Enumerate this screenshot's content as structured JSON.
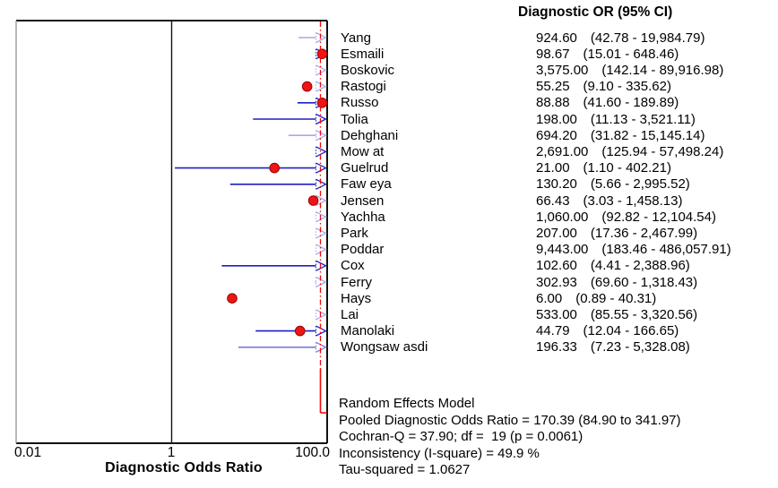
{
  "header": {
    "col_title": "Diagnostic OR (95% CI)"
  },
  "axis": {
    "xlabel": "Diagnostic Odds Ratio",
    "tick_min": "0.01",
    "tick_mid": "1",
    "tick_max": "100.0"
  },
  "summary": {
    "lines": [
      "Random Effects Model",
      "Pooled Diagnostic Odds Ratio = 170.39 (84.90 to 341.97)",
      "Cochran-Q = 37.90; df =  19 (p = 0.0061)",
      "Inconsistency (I-square) = 49.9 %",
      "Tau-squared = 1.0627"
    ]
  },
  "colors": {
    "ci_strong": "#1f1fc1",
    "ci_light": "#a9a9ec",
    "ci_medium": "#7a7ade",
    "dot_fill": "#ed1515",
    "dot_edge": "#a00000",
    "pooled_red": "#f10808",
    "axis_black": "#111111",
    "axis_gray": "#999999"
  },
  "chart_data": {
    "type": "forest",
    "title": "Diagnostic OR (95% CI)",
    "xlabel": "Diagnostic Odds Ratio",
    "x_scale": "log",
    "x_ticks": [
      0.01,
      1,
      100
    ],
    "x_tick_labels": [
      "0.01",
      "1",
      "100.0"
    ],
    "xlim": [
      0.01,
      100
    ],
    "pooled": {
      "label": "Random Effects Model",
      "or": 170.39,
      "lo": 84.9,
      "hi": 341.97
    },
    "heterogeneity": {
      "cochran_q": 37.9,
      "df": 19,
      "p": 0.0061,
      "i_square_pct": 49.9,
      "tau_squared": 1.0627
    },
    "studies": [
      {
        "name": "Yang",
        "or": 924.6,
        "lo": 42.78,
        "hi": 19984.79,
        "or_text": "924.60",
        "ci_text": "(42.78 - 19,984.79)",
        "line": true,
        "tone": "light"
      },
      {
        "name": "Esmaili",
        "or": 98.67,
        "lo": 15.01,
        "hi": 648.46,
        "or_text": "98.67",
        "ci_text": "(15.01 - 648.46)",
        "line": false,
        "tone": "strong"
      },
      {
        "name": "Boskovic",
        "or": 3575.0,
        "lo": 142.14,
        "hi": 89916.98,
        "or_text": "3,575.00",
        "ci_text": "(142.14 - 89,916.98)",
        "line": true,
        "tone": "light"
      },
      {
        "name": "Rastogi",
        "or": 55.25,
        "lo": 9.1,
        "hi": 335.62,
        "or_text": "55.25",
        "ci_text": "(9.10 - 335.62)",
        "line": false,
        "tone": "light"
      },
      {
        "name": "Russo",
        "or": 88.88,
        "lo": 41.6,
        "hi": 189.89,
        "or_text": "88.88",
        "ci_text": "(41.60 - 189.89)",
        "line": true,
        "tone": "strong"
      },
      {
        "name": "Tolia",
        "or": 198.0,
        "lo": 11.13,
        "hi": 3521.11,
        "or_text": "198.00",
        "ci_text": "(11.13 - 3,521.11)",
        "line": true,
        "tone": "strong"
      },
      {
        "name": "Dehghani",
        "or": 694.2,
        "lo": 31.82,
        "hi": 15145.14,
        "or_text": "694.20",
        "ci_text": "(31.82 - 15,145.14)",
        "line": true,
        "tone": "light"
      },
      {
        "name": "Mow at",
        "or": 2691.0,
        "lo": 125.94,
        "hi": 57498.24,
        "or_text": "2,691.00",
        "ci_text": "(125.94 - 57,498.24)",
        "line": true,
        "tone": "strong"
      },
      {
        "name": "Guelrud",
        "or": 21.0,
        "lo": 1.1,
        "hi": 402.21,
        "or_text": "21.00",
        "ci_text": "(1.10 - 402.21)",
        "line": true,
        "tone": "strong"
      },
      {
        "name": "Faw eya",
        "or": 130.2,
        "lo": 5.66,
        "hi": 2995.52,
        "or_text": "130.20",
        "ci_text": "(5.66 - 2,995.52)",
        "line": true,
        "tone": "strong"
      },
      {
        "name": "Jensen",
        "or": 66.43,
        "lo": 3.03,
        "hi": 1458.13,
        "or_text": "66.43",
        "ci_text": "(3.03 - 1,458.13)",
        "line": false,
        "tone": "light"
      },
      {
        "name": "Yachha",
        "or": 1060.0,
        "lo": 92.82,
        "hi": 12104.54,
        "or_text": "1,060.00",
        "ci_text": "(92.82 - 12,104.54)",
        "line": true,
        "tone": "light"
      },
      {
        "name": "Park",
        "or": 207.0,
        "lo": 17.36,
        "hi": 2467.99,
        "or_text": "207.00",
        "ci_text": "(17.36 - 2,467.99)",
        "line": false,
        "tone": "light"
      },
      {
        "name": "Poddar",
        "or": 9443.0,
        "lo": 183.46,
        "hi": 486057.91,
        "or_text": "9,443.00",
        "ci_text": "(183.46 - 486,057.91)",
        "line": true,
        "tone": "light"
      },
      {
        "name": "Cox",
        "or": 102.6,
        "lo": 4.41,
        "hi": 2388.96,
        "or_text": "102.60",
        "ci_text": "(4.41 - 2,388.96)",
        "line": true,
        "tone": "strong"
      },
      {
        "name": "Ferry",
        "or": 302.93,
        "lo": 69.6,
        "hi": 1318.43,
        "or_text": "302.93",
        "ci_text": "(69.60 - 1,318.43)",
        "line": true,
        "tone": "light"
      },
      {
        "name": "Hays",
        "or": 6.0,
        "lo": 0.89,
        "hi": 40.31,
        "or_text": "6.00",
        "ci_text": "(0.89 - 40.31)",
        "line": false,
        "tone": "strong"
      },
      {
        "name": "Lai",
        "or": 533.0,
        "lo": 85.55,
        "hi": 3320.56,
        "or_text": "533.00",
        "ci_text": "(85.55 - 3,320.56)",
        "line": true,
        "tone": "light"
      },
      {
        "name": "Manolaki",
        "or": 44.79,
        "lo": 12.04,
        "hi": 166.65,
        "or_text": "44.79",
        "ci_text": "(12.04 - 166.65)",
        "line": true,
        "tone": "strong"
      },
      {
        "name": "Wongsaw asdi",
        "or": 196.33,
        "lo": 7.23,
        "hi": 5328.08,
        "or_text": "196.33",
        "ci_text": "(7.23 - 5,328.08)",
        "line": true,
        "tone": "medium"
      }
    ]
  }
}
